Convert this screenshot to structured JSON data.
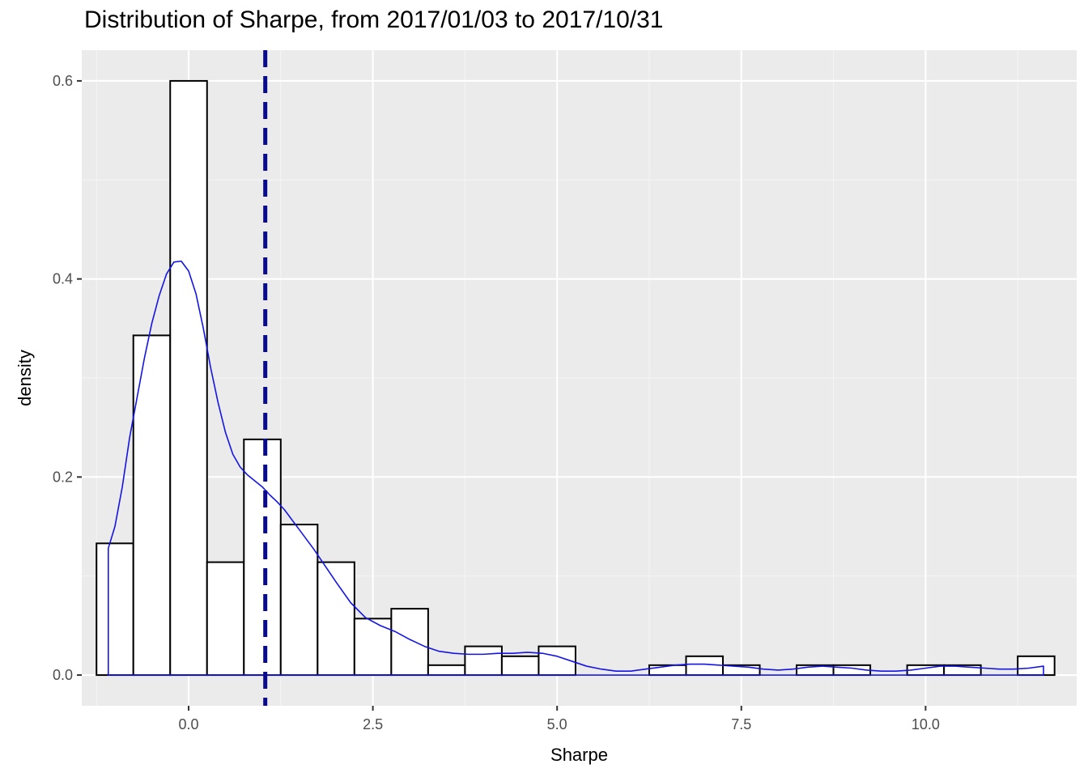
{
  "chart_data": {
    "type": "histogram",
    "title": "Distribution of Sharpe, from 2017/01/03 to 2017/10/31",
    "xlabel": "Sharpe",
    "ylabel": "density",
    "xlim": [
      -1.45,
      12.05
    ],
    "ylim": [
      -0.031,
      0.631
    ],
    "x_ticks": [
      0.0,
      2.5,
      5.0,
      7.5,
      10.0
    ],
    "x_tick_labels": [
      "0.0",
      "2.5",
      "5.0",
      "7.5",
      "10.0"
    ],
    "y_ticks": [
      0.0,
      0.2,
      0.4,
      0.6
    ],
    "y_tick_labels": [
      "0.0",
      "0.2",
      "0.4",
      "0.6"
    ],
    "grid": true,
    "bins": [
      {
        "x0": -1.25,
        "x1": -0.75,
        "density": 0.133
      },
      {
        "x0": -0.75,
        "x1": -0.25,
        "density": 0.343
      },
      {
        "x0": -0.25,
        "x1": 0.25,
        "density": 0.6
      },
      {
        "x0": 0.25,
        "x1": 0.75,
        "density": 0.114
      },
      {
        "x0": 0.75,
        "x1": 1.25,
        "density": 0.238
      },
      {
        "x0": 1.25,
        "x1": 1.75,
        "density": 0.152
      },
      {
        "x0": 1.75,
        "x1": 2.25,
        "density": 0.114
      },
      {
        "x0": 2.25,
        "x1": 2.75,
        "density": 0.057
      },
      {
        "x0": 2.75,
        "x1": 3.25,
        "density": 0.067
      },
      {
        "x0": 3.25,
        "x1": 3.75,
        "density": 0.01
      },
      {
        "x0": 3.75,
        "x1": 4.25,
        "density": 0.029
      },
      {
        "x0": 4.25,
        "x1": 4.75,
        "density": 0.019
      },
      {
        "x0": 4.75,
        "x1": 5.25,
        "density": 0.029
      },
      {
        "x0": 5.25,
        "x1": 5.75,
        "density": 0.0
      },
      {
        "x0": 5.75,
        "x1": 6.25,
        "density": 0.0
      },
      {
        "x0": 6.25,
        "x1": 6.75,
        "density": 0.01
      },
      {
        "x0": 6.75,
        "x1": 7.25,
        "density": 0.019
      },
      {
        "x0": 7.25,
        "x1": 7.75,
        "density": 0.01
      },
      {
        "x0": 7.75,
        "x1": 8.25,
        "density": 0.0
      },
      {
        "x0": 8.25,
        "x1": 8.75,
        "density": 0.01
      },
      {
        "x0": 8.75,
        "x1": 9.25,
        "density": 0.01
      },
      {
        "x0": 9.25,
        "x1": 9.75,
        "density": 0.0
      },
      {
        "x0": 9.75,
        "x1": 10.25,
        "density": 0.01
      },
      {
        "x0": 10.25,
        "x1": 10.75,
        "density": 0.01
      },
      {
        "x0": 10.75,
        "x1": 11.25,
        "density": 0.0
      },
      {
        "x0": 11.25,
        "x1": 11.75,
        "density": 0.019
      }
    ],
    "density_curve": {
      "x": [
        -1.09,
        -1.0,
        -0.9,
        -0.8,
        -0.7,
        -0.6,
        -0.5,
        -0.4,
        -0.3,
        -0.2,
        -0.1,
        0.0,
        0.1,
        0.2,
        0.3,
        0.4,
        0.5,
        0.6,
        0.7,
        0.8,
        0.9,
        1.0,
        1.1,
        1.2,
        1.3,
        1.4,
        1.5,
        1.6,
        1.7,
        1.8,
        1.9,
        2.0,
        2.2,
        2.4,
        2.6,
        2.8,
        3.0,
        3.2,
        3.4,
        3.6,
        3.8,
        4.0,
        4.2,
        4.4,
        4.6,
        4.8,
        5.0,
        5.2,
        5.4,
        5.6,
        5.8,
        6.0,
        6.2,
        6.4,
        6.6,
        6.8,
        7.0,
        7.2,
        7.4,
        7.6,
        7.8,
        8.0,
        8.2,
        8.4,
        8.6,
        8.8,
        9.0,
        9.2,
        9.4,
        9.6,
        9.8,
        10.0,
        10.2,
        10.4,
        10.6,
        10.8,
        11.0,
        11.2,
        11.4,
        11.6
      ],
      "y": [
        0.128,
        0.15,
        0.19,
        0.24,
        0.28,
        0.32,
        0.355,
        0.383,
        0.405,
        0.417,
        0.418,
        0.408,
        0.385,
        0.35,
        0.31,
        0.275,
        0.245,
        0.223,
        0.21,
        0.202,
        0.196,
        0.19,
        0.182,
        0.175,
        0.167,
        0.157,
        0.147,
        0.137,
        0.127,
        0.116,
        0.105,
        0.094,
        0.073,
        0.058,
        0.05,
        0.044,
        0.036,
        0.029,
        0.024,
        0.022,
        0.021,
        0.021,
        0.022,
        0.022,
        0.023,
        0.022,
        0.019,
        0.014,
        0.009,
        0.006,
        0.004,
        0.004,
        0.006,
        0.008,
        0.01,
        0.011,
        0.011,
        0.01,
        0.009,
        0.008,
        0.006,
        0.005,
        0.006,
        0.008,
        0.009,
        0.008,
        0.007,
        0.005,
        0.004,
        0.004,
        0.005,
        0.007,
        0.009,
        0.009,
        0.008,
        0.007,
        0.006,
        0.006,
        0.007,
        0.009
      ]
    },
    "vline": {
      "x": 1.04,
      "style": "dashed",
      "color": "#0a0a8c"
    },
    "colors": {
      "panel_background": "#ebebeb",
      "grid_major": "#ffffff",
      "grid_minor": "#f4f4f4",
      "bar_fill": "#ffffff",
      "bar_edge": "#000000",
      "density_line": "#1414e6",
      "tick_label": "#4d4d4d",
      "tick_mark": "#333333"
    }
  }
}
